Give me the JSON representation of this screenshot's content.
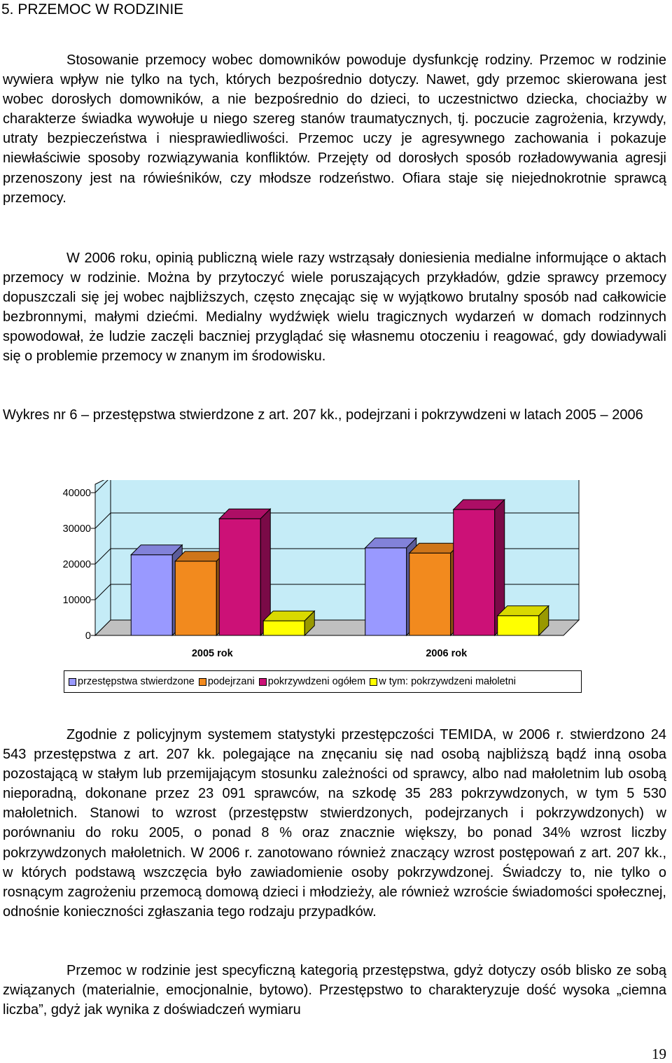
{
  "document": {
    "heading": "5. PRZEMOC W RODZINIE",
    "paragraphs": [
      "Stosowanie przemocy wobec domowników powoduje dysfunkcję rodziny. Przemoc w rodzinie wywiera wpływ nie tylko na tych, których bezpośrednio dotyczy. Nawet, gdy przemoc skierowana jest wobec dorosłych domowników, a nie bezpośrednio do dzieci, to uczestnictwo dziecka, chociażby w charakterze świadka wywołuje u niego szereg stanów traumatycznych, tj. poczucie zagrożenia, krzywdy, utraty bezpieczeństwa i niesprawiedliwości. Przemoc uczy je agresywnego zachowania i pokazuje niewłaściwie sposoby rozwiązywania konfliktów. Przejęty od dorosłych sposób rozładowywania agresji przenoszony jest na rówieśników, czy młodsze rodzeństwo. Ofiara staje się niejednokrotnie sprawcą przemocy.",
      "W 2006 roku, opinią publiczną wiele razy wstrząsały doniesienia medialne informujące o aktach przemocy w rodzinie. Można by przytoczyć wiele poruszających przykładów, gdzie sprawcy przemocy dopuszczali się jej wobec najbliższych, często znęcając się w wyjątkowo brutalny sposób nad całkowicie bezbronnymi, małymi dziećmi. Medialny wydźwięk wielu tragicznych wydarzeń w domach rodzinnych spowodował, że ludzie zaczęli baczniej przyglądać się własnemu otoczeniu i reagować, gdy dowiadywali się o problemie przemocy w znanym im środowisku.",
      "Zgodnie z policyjnym systemem statystyki przestępczości TEMIDA, w 2006 r. stwierdzono 24 543 przestępstwa z art. 207 kk. polegające na znęcaniu się nad osobą najbliższą bądź inną osoba pozostającą w stałym lub przemijającym stosunku zależności od sprawcy, albo nad małoletnim lub osobą nieporadną, dokonane przez 23 091 sprawców, na szkodę 35 283 pokrzywdzonych, w tym 5 530 małoletnich. Stanowi to wzrost (przestępstw stwierdzonych, podejrzanych i pokrzywdzonych) w porównaniu do roku 2005, o ponad 8 % oraz znacznie większy, bo ponad 34% wzrost liczby pokrzywdzonych małoletnich. W 2006 r. zanotowano również znaczący wzrost postępowań z art. 207 kk., w których podstawą wszczęcia było zawiadomienie osoby pokrzywdzonej. Świadczy to, nie tylko o rosnącym zagrożeniu przemocą domową dzieci i młodzieży, ale również wzroście świadomości społecznej, odnośnie konieczności zgłaszania tego rodzaju przypadków.",
      "Przemoc w rodzinie jest specyficzną kategorią przestępstwa, gdyż dotyczy osób blisko ze sobą związanych (materialnie, emocjonalnie, bytowo). Przestępstwo to charakteryzuje dość wysoka „ciemna liczba”, gdyż jak wynika z doświadczeń wymiaru"
    ],
    "chart_caption": "Wykres nr 6 – przestępstwa stwierdzone z art. 207 kk., podejrzani i pokrzywdzeni w latach 2005 – 2006",
    "page_number": "19"
  },
  "chart_data": {
    "type": "bar",
    "style": "3d-clustered-column",
    "categories": [
      "2005 rok",
      "2006 rok"
    ],
    "series": [
      {
        "name": "przestępstwa stwierdzone",
        "values": [
          22600,
          24543
        ],
        "color": "#9999ff"
      },
      {
        "name": "podejrzani",
        "values": [
          20800,
          23091
        ],
        "color": "#f28a1e"
      },
      {
        "name": "pokrzywdzeni ogółem",
        "values": [
          32700,
          35283
        ],
        "color": "#cc1177"
      },
      {
        "name": "w tym: pokrzywdzeni małoletni",
        "values": [
          4100,
          5530
        ],
        "color": "#ffff00"
      }
    ],
    "ylim": [
      0,
      40000
    ],
    "yticks": [
      "0",
      "10000",
      "20000",
      "30000",
      "40000"
    ],
    "legend": "bottom",
    "background_color": "#c5ecf7"
  }
}
